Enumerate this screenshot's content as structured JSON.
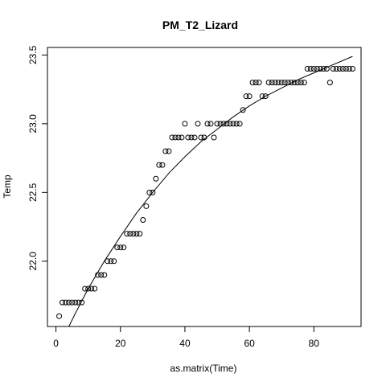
{
  "chart_data": {
    "type": "scatter",
    "title": "PM_T2_Lizard",
    "xlabel": "as.matrix(Time)",
    "ylabel": "Temp",
    "xlim": [
      -2.64,
      94.64
    ],
    "ylim": [
      21.525,
      23.555
    ],
    "xticks": [
      0,
      20,
      40,
      60,
      80
    ],
    "yticks": [
      22.0,
      22.5,
      23.0,
      23.5
    ],
    "xtick_labels": [
      "0",
      "20",
      "40",
      "60",
      "80"
    ],
    "ytick_labels": [
      "22.0",
      "22.5",
      "23.0",
      "23.5"
    ],
    "grid": false,
    "legend": "none",
    "point_color": "#000000",
    "line_color": "#000000",
    "series": [
      {
        "type": "points",
        "x": [
          1,
          2,
          3,
          4,
          5,
          6,
          7,
          8,
          9,
          10,
          11,
          12,
          13,
          14,
          15,
          16,
          17,
          18,
          19,
          20,
          21,
          22,
          23,
          24,
          25,
          26,
          27,
          28,
          29,
          30,
          31,
          32,
          33,
          34,
          35,
          36,
          37,
          38,
          39,
          40,
          41,
          42,
          43,
          44,
          45,
          46,
          47,
          48,
          49,
          50,
          51,
          52,
          53,
          54,
          55,
          56,
          57,
          58,
          59,
          60,
          61,
          62,
          63,
          64,
          65,
          66,
          67,
          68,
          69,
          70,
          71,
          72,
          73,
          74,
          75,
          76,
          77,
          78,
          79,
          80,
          81,
          82,
          83,
          84,
          85,
          86,
          87,
          88,
          89,
          90,
          91,
          92
        ],
        "y": [
          21.6,
          21.7,
          21.7,
          21.7,
          21.7,
          21.7,
          21.7,
          21.7,
          21.8,
          21.8,
          21.8,
          21.8,
          21.9,
          21.9,
          21.9,
          22.0,
          22.0,
          22.0,
          22.1,
          22.1,
          22.1,
          22.2,
          22.2,
          22.2,
          22.2,
          22.2,
          22.3,
          22.4,
          22.5,
          22.5,
          22.6,
          22.7,
          22.7,
          22.8,
          22.8,
          22.9,
          22.9,
          22.9,
          22.9,
          23.0,
          22.9,
          22.9,
          22.9,
          23.0,
          22.9,
          22.9,
          23.0,
          23.0,
          22.9,
          23.0,
          23.0,
          23.0,
          23.0,
          23.0,
          23.0,
          23.0,
          23.0,
          23.1,
          23.2,
          23.2,
          23.3,
          23.3,
          23.3,
          23.2,
          23.2,
          23.3,
          23.3,
          23.3,
          23.3,
          23.3,
          23.3,
          23.3,
          23.3,
          23.3,
          23.3,
          23.3,
          23.3,
          23.4,
          23.4,
          23.4,
          23.4,
          23.4,
          23.4,
          23.4,
          23.3,
          23.4,
          23.4,
          23.4,
          23.4,
          23.4,
          23.4,
          23.4
        ]
      },
      {
        "type": "curve",
        "x": [
          3.5,
          6,
          10,
          15,
          20,
          25,
          30,
          35,
          40,
          45,
          50,
          55,
          60,
          65,
          70,
          75,
          80,
          85,
          92
        ],
        "y": [
          21.5,
          21.62,
          21.8,
          22.0,
          22.18,
          22.35,
          22.5,
          22.64,
          22.76,
          22.87,
          22.96,
          23.05,
          23.13,
          23.2,
          23.26,
          23.32,
          23.37,
          23.42,
          23.49
        ]
      }
    ]
  }
}
